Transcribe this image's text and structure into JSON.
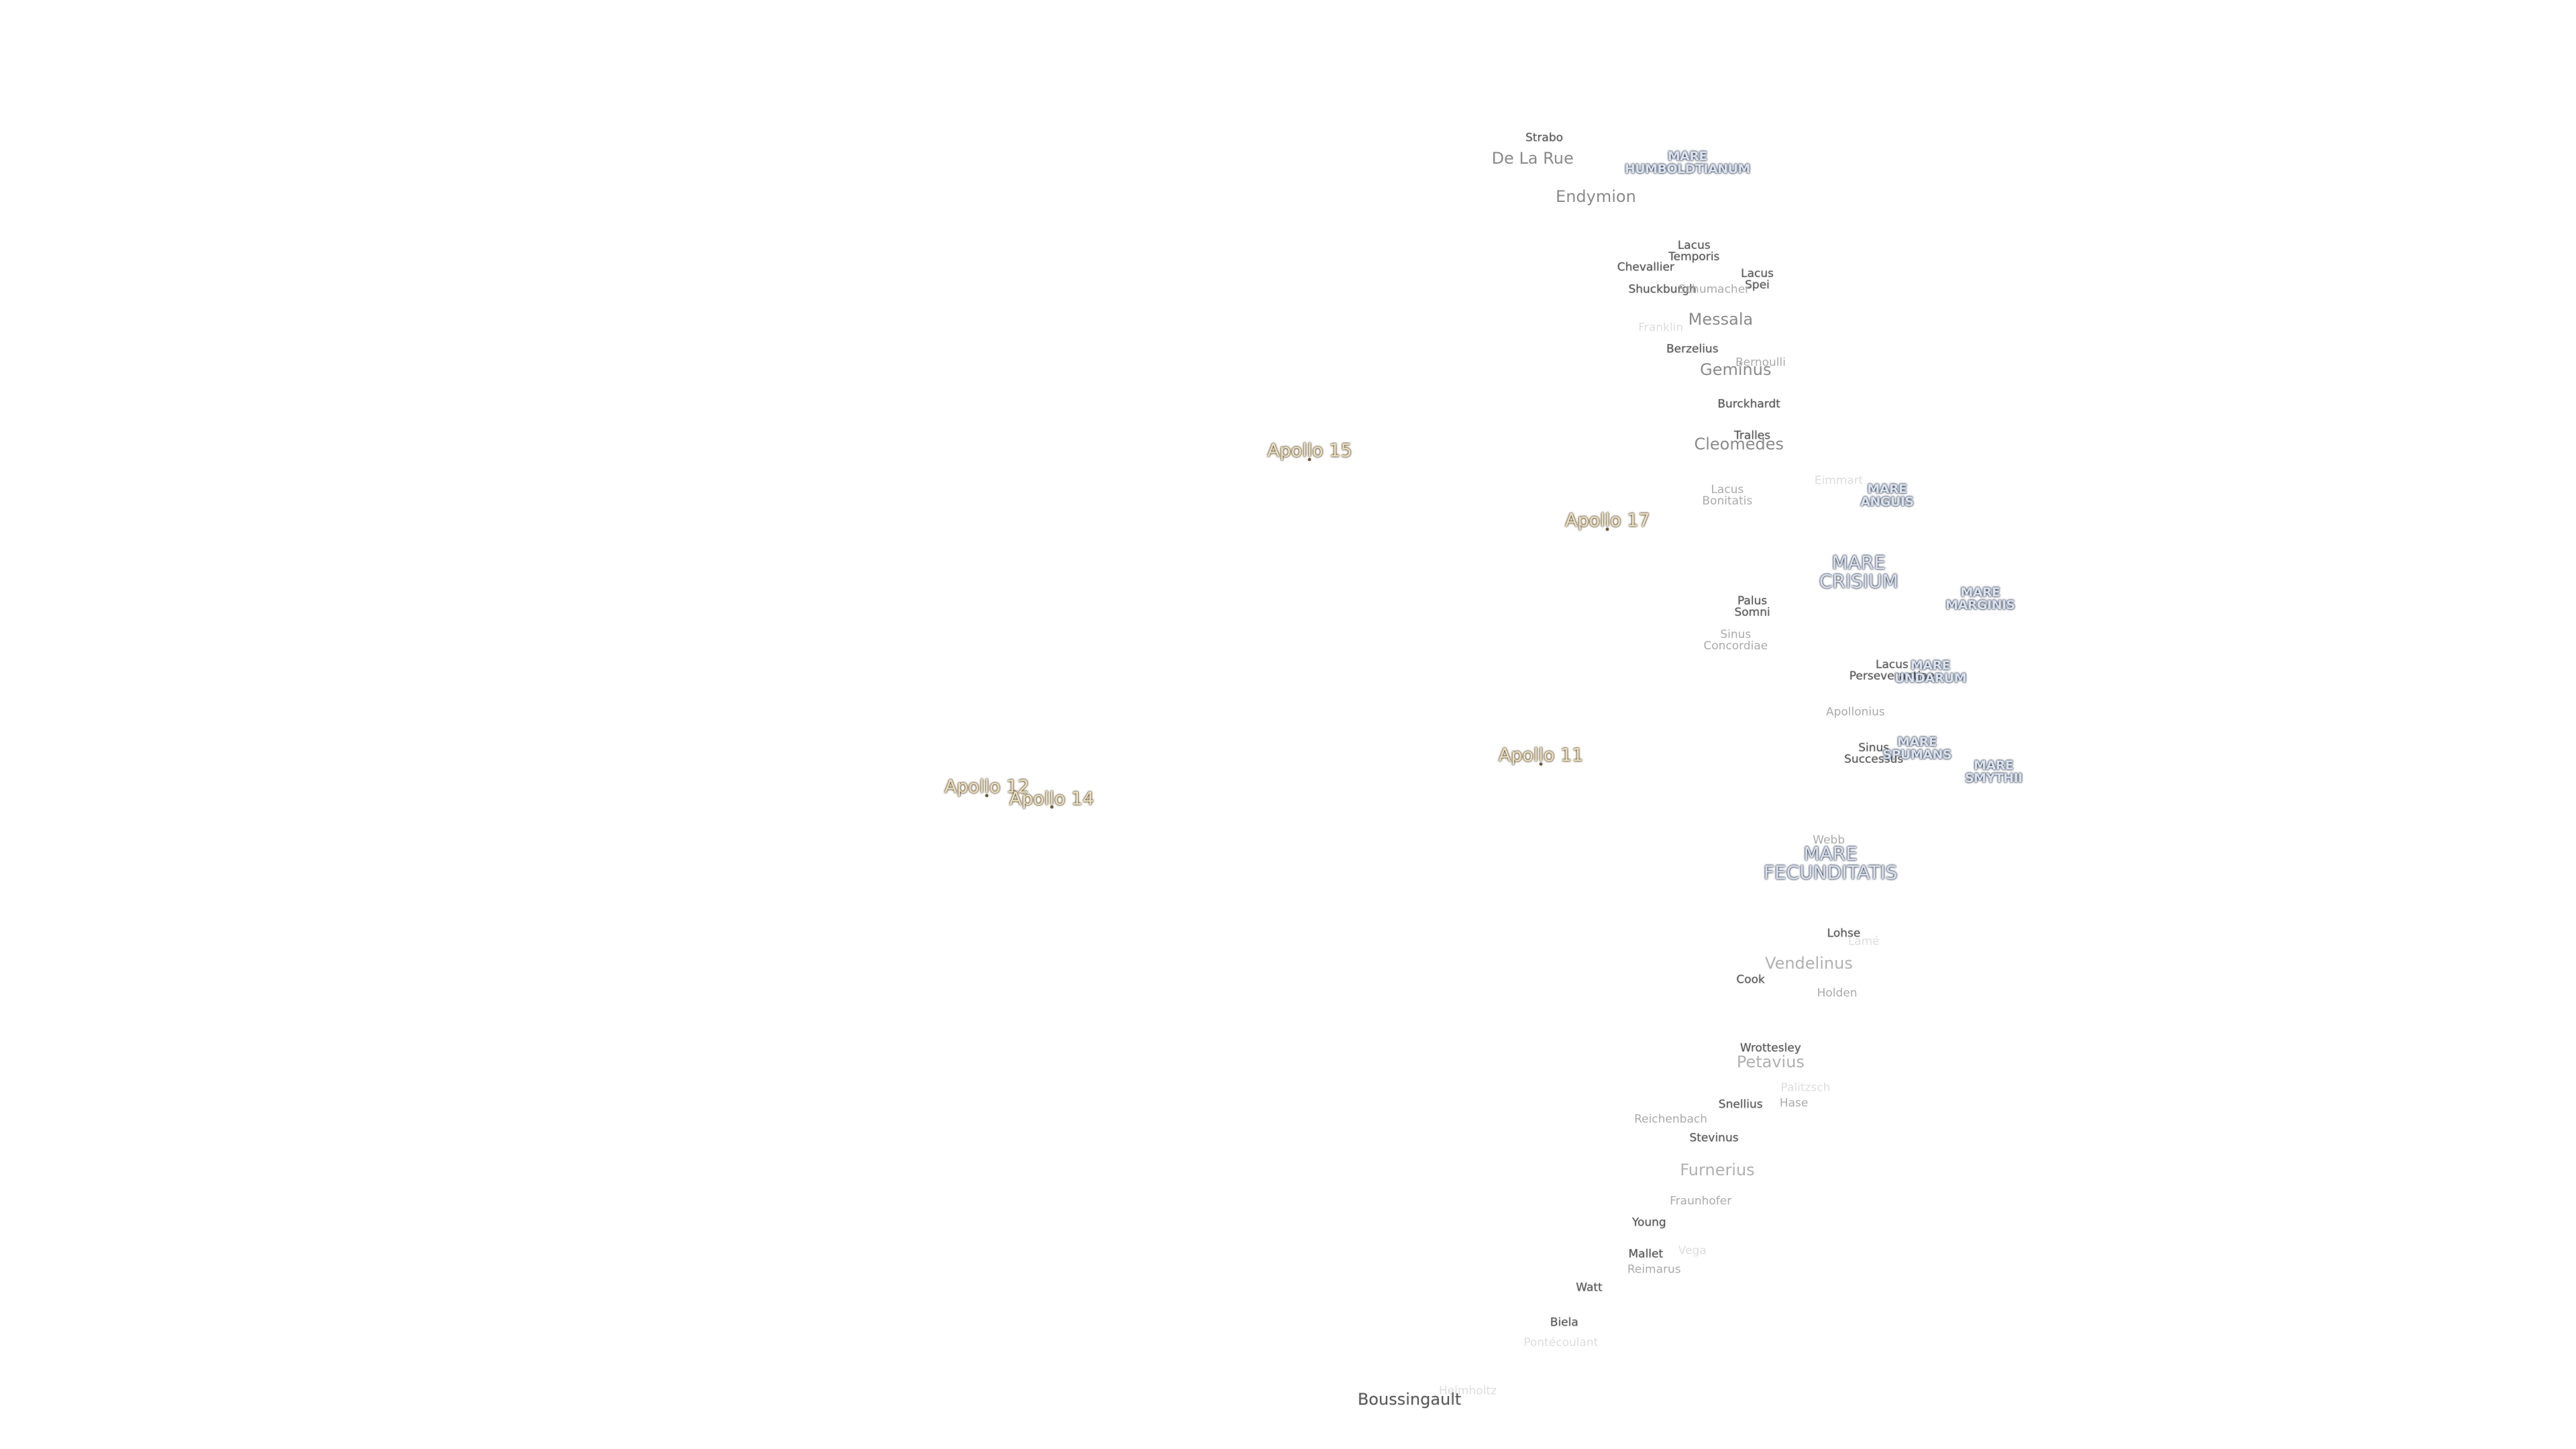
{
  "labels": [
    [
      "Strabo"
    ],
    [
      "De La Rue"
    ],
    [
      "MARE",
      "HUMBOLDTIANUM"
    ],
    [
      "Endymion"
    ],
    [
      "Lacus",
      "Temporis"
    ],
    [
      "Chevallier"
    ],
    [
      "Lacus",
      "Spei"
    ],
    [
      "Shuckburgh"
    ],
    [
      "Schumacher"
    ],
    [
      "Messala"
    ],
    [
      "Franklin"
    ],
    [
      "Berzelius"
    ],
    [
      "Bernoulli"
    ],
    [
      "Geminus"
    ],
    [
      "Burckhardt"
    ],
    [
      "Tralles"
    ],
    [
      "Cleomedes"
    ],
    [
      "Eimmart"
    ],
    [
      "MARE",
      "ANGUIS"
    ],
    [
      "Lacus",
      "Bonitatis"
    ],
    [
      "Apollo 15"
    ],
    [
      "Apollo 17"
    ],
    [
      "MARE",
      "CRISIUM"
    ],
    [
      "MARE",
      "MARGINIS"
    ],
    [
      "Palus",
      "Somni"
    ],
    [
      "Sinus",
      "Concordiae"
    ],
    [
      "Lacus",
      "Perseverantiae"
    ],
    [
      "MARE",
      "UNDARUM"
    ],
    [
      "Apollonius"
    ],
    [
      "Apollo 11"
    ],
    [
      "Sinus",
      "Successus"
    ],
    [
      "MARE",
      "SPUMANS"
    ],
    [
      "MARE",
      "SMYTHII"
    ],
    [
      "Apollo 12"
    ],
    [
      "Apollo 14"
    ],
    [
      "Webb"
    ],
    [
      "MARE",
      "FECUNDITATIS"
    ],
    [
      "Lohse"
    ],
    [
      "Lamé"
    ],
    [
      "Vendelinus"
    ],
    [
      "Cook"
    ],
    [
      "Holden"
    ],
    [
      "Wrottesley"
    ],
    [
      "Petavius"
    ],
    [
      "Palitzsch"
    ],
    [
      "Hase"
    ],
    [
      "Snellius"
    ],
    [
      "Reichenbach"
    ],
    [
      "Stevinus"
    ],
    [
      "Furnerius"
    ],
    [
      "Fraunhofer"
    ],
    [
      "Young"
    ],
    [
      "Vega"
    ],
    [
      "Mallet"
    ],
    [
      "Reimarus"
    ],
    [
      "Watt"
    ],
    [
      "Biela"
    ],
    [
      "Pontécoulant"
    ],
    [
      "Helmholtz"
    ],
    [
      "Boussingault"
    ]
  ]
}
